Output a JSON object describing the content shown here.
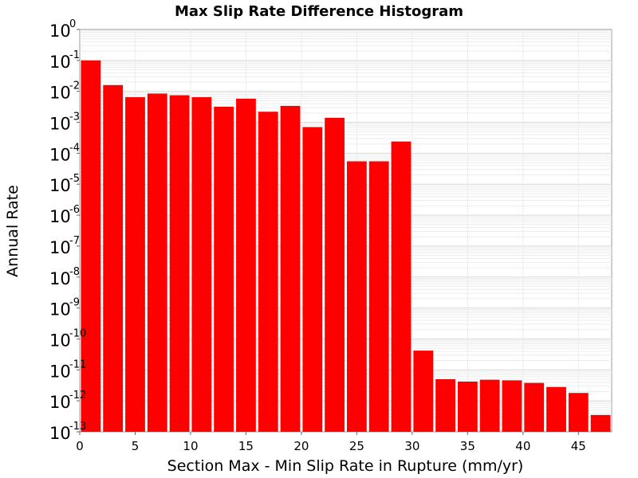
{
  "chart_data": {
    "type": "bar",
    "title": "Max Slip Rate Difference Histogram",
    "xlabel": "Section Max - Min Slip Rate in Rupture (mm/yr)",
    "ylabel": "Annual Rate",
    "xlim": [
      0,
      48
    ],
    "ylim": [
      1e-13,
      1
    ],
    "yscale": "log",
    "bin_width": 2,
    "grid": true,
    "bar_color": "#ff0000",
    "x_ticks": [
      0,
      5,
      10,
      15,
      20,
      25,
      30,
      35,
      40,
      45
    ],
    "y_tick_base": "10",
    "y_tick_exponents": [
      "0",
      "-1",
      "-2",
      "-3",
      "-4",
      "-5",
      "-6",
      "-7",
      "-8",
      "-9",
      "-10",
      "-11",
      "-12",
      "-13"
    ],
    "x": [
      1,
      3,
      5,
      7,
      9,
      11,
      13,
      15,
      17,
      19,
      21,
      23,
      25,
      27,
      29,
      31,
      33,
      35,
      37,
      39,
      41,
      43,
      45,
      47
    ],
    "values": [
      0.1,
      0.016,
      0.0065,
      0.0085,
      0.0075,
      0.0065,
      0.0032,
      0.0058,
      0.0022,
      0.0034,
      0.0007,
      0.0014,
      5.5e-05,
      5.5e-05,
      0.00024,
      4.2e-11,
      5e-12,
      4.2e-12,
      4.8e-12,
      4.6e-12,
      3.8e-12,
      2.8e-12,
      1.8e-12,
      3.5e-13
    ]
  }
}
